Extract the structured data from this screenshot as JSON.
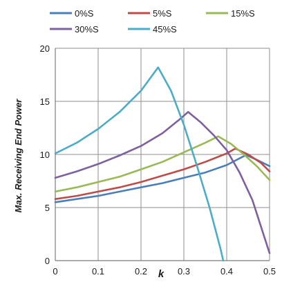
{
  "chart_data": {
    "type": "line",
    "xlabel": "k",
    "ylabel": "Max. Receiving End Power",
    "xlim": [
      0,
      0.5
    ],
    "ylim": [
      0,
      20
    ],
    "x_ticks": [
      "0",
      "0.1",
      "0.2",
      "0.3",
      "0.4",
      "0.5"
    ],
    "y_ticks": [
      "0",
      "5",
      "10",
      "15",
      "20"
    ],
    "grid": true,
    "legend_position": "top",
    "series": [
      {
        "name": "0%S",
        "color": "#4a7ebb",
        "points": [
          [
            0,
            5.5
          ],
          [
            0.05,
            5.8
          ],
          [
            0.1,
            6.1
          ],
          [
            0.15,
            6.5
          ],
          [
            0.2,
            6.9
          ],
          [
            0.25,
            7.3
          ],
          [
            0.3,
            7.8
          ],
          [
            0.35,
            8.3
          ],
          [
            0.4,
            9.0
          ],
          [
            0.445,
            9.95
          ],
          [
            0.47,
            9.5
          ],
          [
            0.5,
            8.9
          ]
        ]
      },
      {
        "name": "5%S",
        "color": "#be4b48",
        "points": [
          [
            0,
            5.8
          ],
          [
            0.05,
            6.1
          ],
          [
            0.1,
            6.5
          ],
          [
            0.15,
            6.9
          ],
          [
            0.2,
            7.4
          ],
          [
            0.25,
            8.0
          ],
          [
            0.3,
            8.6
          ],
          [
            0.35,
            9.3
          ],
          [
            0.4,
            10.1
          ],
          [
            0.42,
            10.55
          ],
          [
            0.45,
            10.0
          ],
          [
            0.48,
            9.2
          ],
          [
            0.5,
            8.4
          ]
        ]
      },
      {
        "name": "15%S",
        "color": "#98b954",
        "points": [
          [
            0,
            6.5
          ],
          [
            0.05,
            6.9
          ],
          [
            0.1,
            7.4
          ],
          [
            0.15,
            7.9
          ],
          [
            0.2,
            8.6
          ],
          [
            0.25,
            9.3
          ],
          [
            0.3,
            10.2
          ],
          [
            0.35,
            11.1
          ],
          [
            0.38,
            11.7
          ],
          [
            0.41,
            11.0
          ],
          [
            0.44,
            10.0
          ],
          [
            0.47,
            8.9
          ],
          [
            0.5,
            7.6
          ]
        ]
      },
      {
        "name": "30%S",
        "color": "#7d60a0",
        "points": [
          [
            0,
            7.8
          ],
          [
            0.05,
            8.4
          ],
          [
            0.1,
            9.1
          ],
          [
            0.15,
            9.9
          ],
          [
            0.2,
            10.8
          ],
          [
            0.25,
            12.0
          ],
          [
            0.29,
            13.3
          ],
          [
            0.31,
            14.0
          ],
          [
            0.34,
            13.0
          ],
          [
            0.37,
            11.8
          ],
          [
            0.4,
            10.4
          ],
          [
            0.43,
            8.3
          ],
          [
            0.46,
            5.7
          ],
          [
            0.48,
            3.2
          ],
          [
            0.5,
            0.7
          ]
        ]
      },
      {
        "name": "45%S",
        "color": "#4bacc6",
        "points": [
          [
            0,
            10.1
          ],
          [
            0.05,
            11.1
          ],
          [
            0.1,
            12.4
          ],
          [
            0.15,
            14.0
          ],
          [
            0.2,
            16.0
          ],
          [
            0.24,
            18.2
          ],
          [
            0.27,
            16.0
          ],
          [
            0.3,
            12.8
          ],
          [
            0.33,
            9.0
          ],
          [
            0.36,
            5.0
          ],
          [
            0.385,
            1.2
          ],
          [
            0.392,
            0
          ]
        ]
      }
    ]
  }
}
